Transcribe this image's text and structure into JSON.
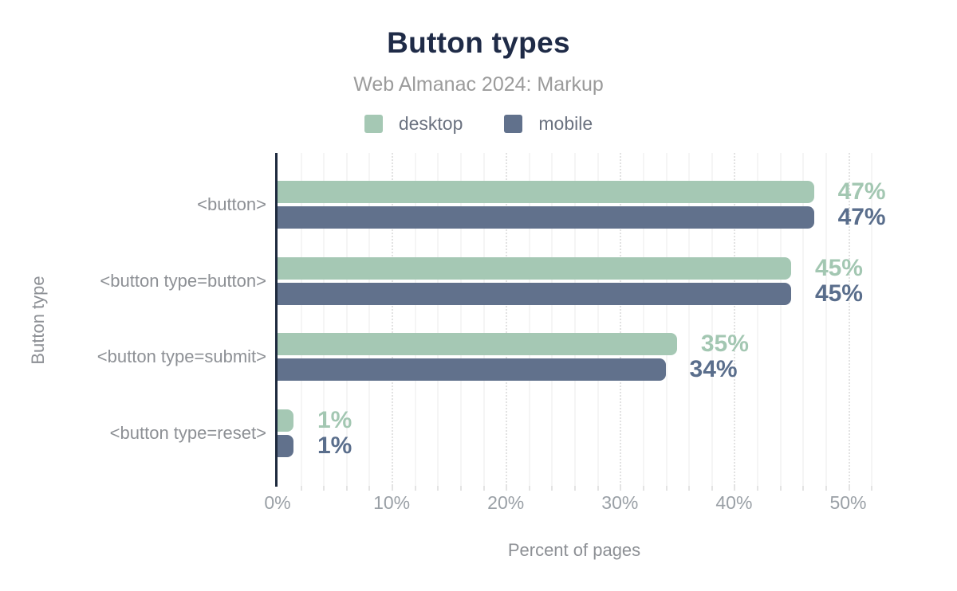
{
  "chart_data": {
    "type": "bar",
    "orientation": "horizontal",
    "title": "Button types",
    "subtitle": "Web Almanac 2024: Markup",
    "categories": [
      "<button>",
      "<button type=button>",
      "<button type=submit>",
      "<button type=reset>"
    ],
    "series": [
      {
        "name": "desktop",
        "color": "#a5c8b4",
        "label_color": "#a3c7b2",
        "values": [
          47,
          45,
          35,
          1
        ]
      },
      {
        "name": "mobile",
        "color": "#61718c",
        "label_color": "#5a6e8c",
        "values": [
          47,
          45,
          34,
          1
        ]
      }
    ],
    "value_suffix": "%",
    "xlabel": "Percent of pages",
    "ylabel": "Button type",
    "xlim": [
      0,
      52
    ],
    "xtick_values": [
      0,
      10,
      20,
      30,
      40,
      50
    ],
    "xtick_labels": [
      "0%",
      "10%",
      "20%",
      "30%",
      "40%",
      "50%"
    ],
    "minor_grid_step": 2,
    "major_grid_step": 10,
    "grid": "vertical",
    "legend_position": "top"
  },
  "colors": {
    "title": "#1f2b47",
    "subtitle": "#9b9b9b",
    "axis_line": "#1e2a3e",
    "axis_text": "#9aa0a6",
    "category_text": "#8d9095",
    "legend_text": "#6b7280",
    "background": "#ffffff"
  }
}
